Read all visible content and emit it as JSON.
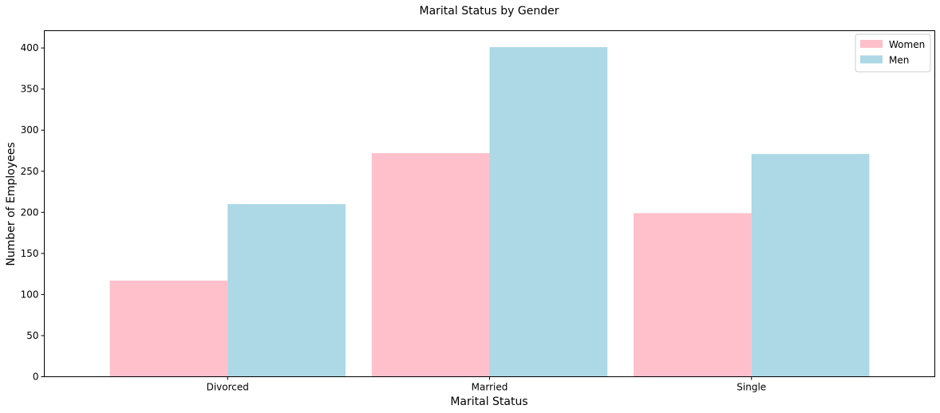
{
  "chart_data": {
    "type": "bar",
    "title": "Marital Status by Gender",
    "xlabel": "Marital Status",
    "ylabel": "Number of Employees",
    "categories": [
      "Divorced",
      "Married",
      "Single"
    ],
    "series": [
      {
        "name": "Women",
        "color": "#FFC0CB",
        "values": [
          117,
          272,
          199
        ]
      },
      {
        "name": "Men",
        "color": "#ADD8E6",
        "values": [
          210,
          401,
          271
        ]
      }
    ],
    "ylim": [
      0,
      421
    ],
    "yticks": [
      0,
      50,
      100,
      150,
      200,
      250,
      300,
      350,
      400
    ],
    "grid": false,
    "legend_position": "top-right"
  }
}
